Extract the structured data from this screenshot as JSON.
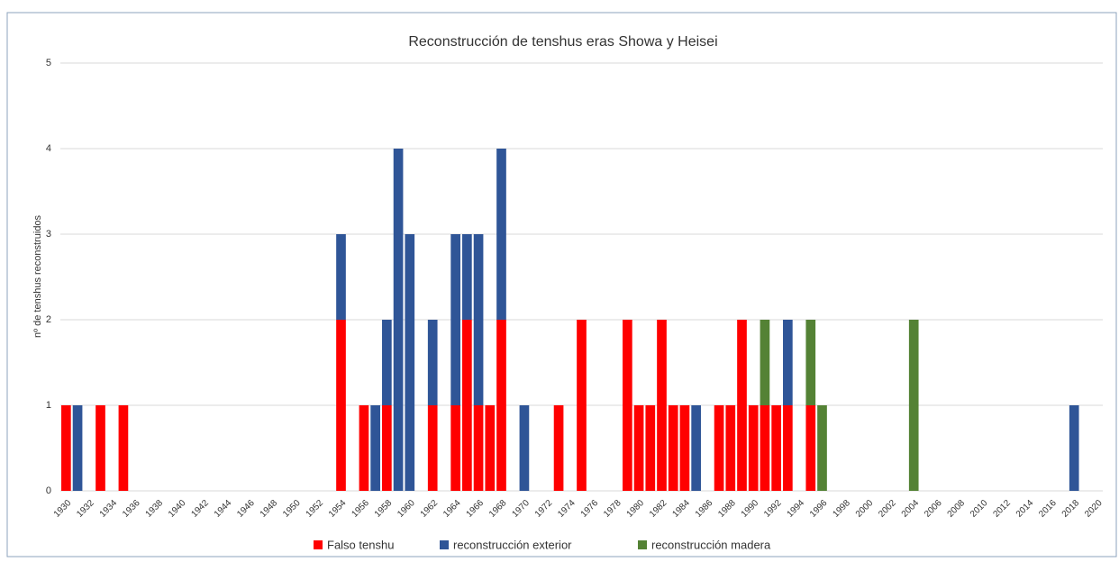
{
  "chart_data": {
    "type": "stacked_bar",
    "title": "Reconstrucción de tenshus eras Showa y Heisei",
    "y_label": "nº de tenshus reconstruidos",
    "categories": [
      "1930",
      null,
      "1932",
      null,
      "1934",
      null,
      "1936",
      null,
      "1938",
      null,
      "1940",
      null,
      "1942",
      null,
      "1944",
      null,
      "1946",
      null,
      "1948",
      null,
      "1950",
      null,
      "1952",
      null,
      "1954",
      null,
      "1956",
      null,
      "1958",
      null,
      "1960",
      null,
      "1962",
      null,
      "1964",
      null,
      "1966",
      null,
      "1968",
      null,
      "1970",
      null,
      "1972",
      null,
      "1974",
      null,
      "1976",
      null,
      "1978",
      null,
      "1980",
      null,
      "1982",
      null,
      "1984",
      null,
      "1986",
      null,
      "1988",
      null,
      "1990",
      null,
      "1992",
      null,
      "1994",
      null,
      "1996",
      null,
      "1998",
      null,
      "2000",
      null,
      "2002",
      null,
      "2004",
      null,
      "2006",
      null,
      "2008",
      null,
      "2010",
      null,
      "2012",
      null,
      "2014",
      null,
      "2016",
      null,
      "2018",
      null,
      "2020"
    ],
    "series": [
      {
        "name": "Falso tenshu",
        "color": "#ff0000",
        "values": [
          1,
          0,
          0,
          1,
          0,
          1,
          0,
          0,
          0,
          0,
          0,
          0,
          0,
          0,
          0,
          0,
          0,
          0,
          0,
          0,
          0,
          0,
          0,
          0,
          2,
          0,
          1,
          0,
          1,
          0,
          0,
          0,
          1,
          0,
          1,
          2,
          1,
          1,
          2,
          0,
          0,
          0,
          0,
          1,
          0,
          2,
          0,
          0,
          0,
          2,
          1,
          1,
          2,
          1,
          1,
          0,
          0,
          1,
          1,
          2,
          1,
          1,
          1,
          1,
          0,
          1,
          0,
          0,
          0,
          0,
          0,
          0,
          0,
          0,
          0,
          0,
          0,
          0,
          0,
          0,
          0,
          0,
          0,
          0,
          0,
          0,
          0,
          0,
          0,
          0,
          0
        ]
      },
      {
        "name": "reconstrucción exterior",
        "color": "#2f5597",
        "values": [
          0,
          1,
          0,
          0,
          0,
          0,
          0,
          0,
          0,
          0,
          0,
          0,
          0,
          0,
          0,
          0,
          0,
          0,
          0,
          0,
          0,
          0,
          0,
          0,
          1,
          0,
          0,
          1,
          1,
          4,
          3,
          0,
          1,
          0,
          2,
          1,
          2,
          0,
          2,
          0,
          1,
          0,
          0,
          0,
          0,
          0,
          0,
          0,
          0,
          0,
          0,
          0,
          0,
          0,
          0,
          1,
          0,
          0,
          0,
          0,
          0,
          0,
          0,
          1,
          0,
          0,
          0,
          0,
          0,
          0,
          0,
          0,
          0,
          0,
          0,
          0,
          0,
          0,
          0,
          0,
          0,
          0,
          0,
          0,
          0,
          0,
          0,
          0,
          1,
          0,
          0
        ]
      },
      {
        "name": "reconstrucción madera",
        "color": "#548235",
        "values": [
          0,
          0,
          0,
          0,
          0,
          0,
          0,
          0,
          0,
          0,
          0,
          0,
          0,
          0,
          0,
          0,
          0,
          0,
          0,
          0,
          0,
          0,
          0,
          0,
          0,
          0,
          0,
          0,
          0,
          0,
          0,
          0,
          0,
          0,
          0,
          0,
          0,
          0,
          0,
          0,
          0,
          0,
          0,
          0,
          0,
          0,
          0,
          0,
          0,
          0,
          0,
          0,
          0,
          0,
          0,
          0,
          0,
          0,
          0,
          0,
          0,
          1,
          0,
          0,
          0,
          1,
          1,
          0,
          0,
          0,
          0,
          0,
          0,
          0,
          2,
          0,
          0,
          0,
          0,
          0,
          0,
          0,
          0,
          0,
          0,
          0,
          0,
          0,
          0,
          0,
          0
        ]
      }
    ],
    "ylim": [
      0,
      5
    ],
    "yticks": [
      0,
      1,
      2,
      3,
      4,
      5
    ],
    "grid": true,
    "legend": "bottom"
  }
}
